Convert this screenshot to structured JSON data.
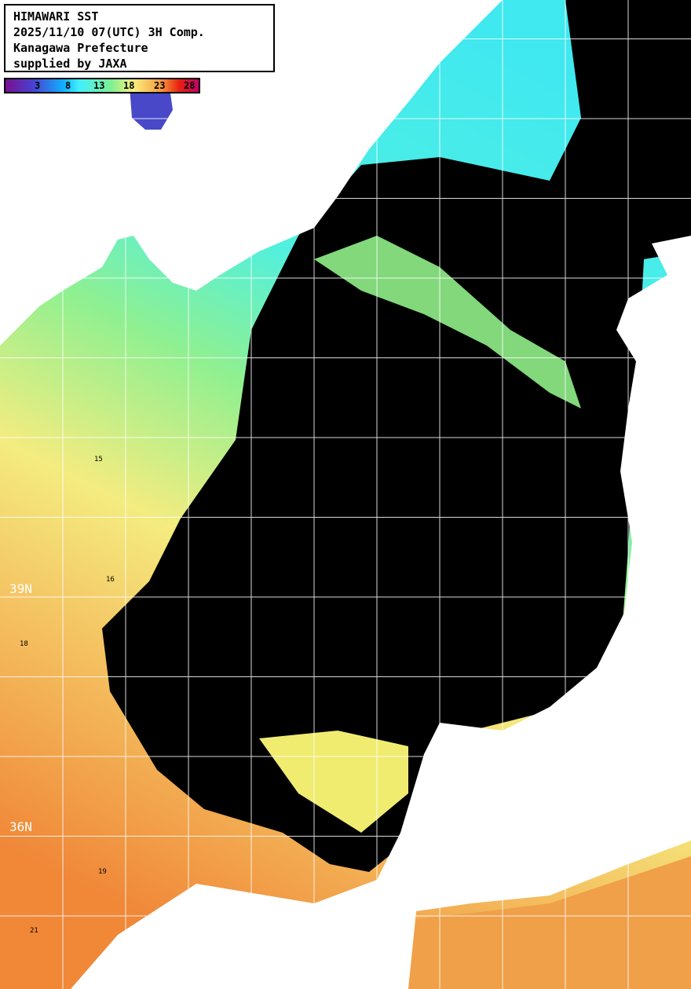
{
  "header": {
    "lines": [
      "HIMAWARI SST",
      "2025/11/10 07(UTC) 3H Comp.",
      "Kanagawa Prefecture",
      "supplied by JAXA"
    ]
  },
  "colorbar": {
    "ticks": [
      "3",
      "8",
      "13",
      "18",
      "23",
      "28"
    ],
    "colors": [
      "#7a1090",
      "#4a40d0",
      "#10b0ff",
      "#40f0ff",
      "#80f090",
      "#f8f080",
      "#f8a040",
      "#e82010",
      "#c0006a"
    ]
  },
  "map": {
    "lat_labels": [
      "39N",
      "36N"
    ],
    "contour_labels": [
      "15",
      "16",
      "18",
      "19",
      "21"
    ],
    "colors": {
      "land": "#ffffff",
      "cloud": "#000000",
      "grid": "#ffffff"
    }
  }
}
